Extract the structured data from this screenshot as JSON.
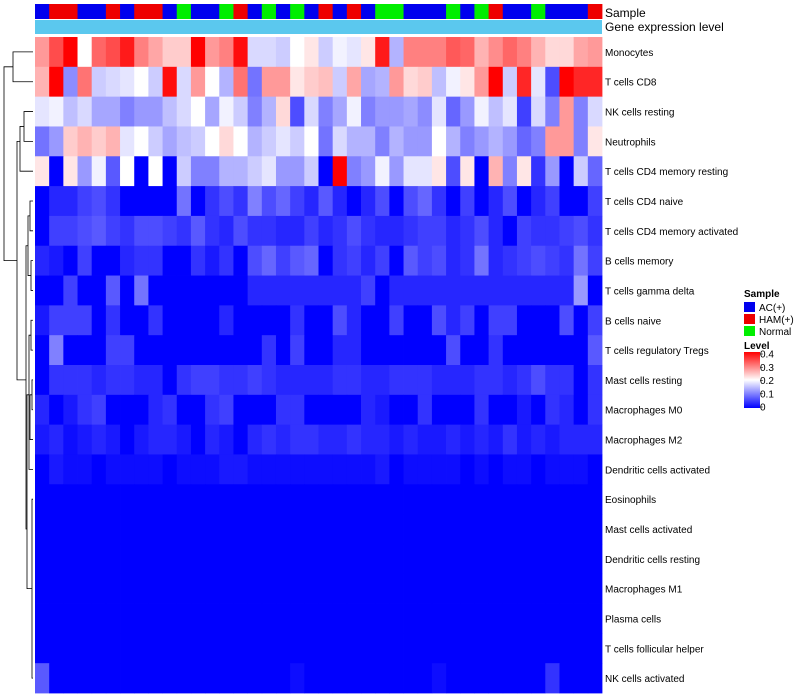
{
  "chart_data": {
    "type": "heatmap",
    "title": "",
    "annotations": {
      "sample_label": "Sample",
      "gene_label": "Gene expression level",
      "sample_colors": [
        "#0000ee",
        "#ee0000",
        "#ee0000",
        "#0000ee",
        "#0000ee",
        "#ee0000",
        "#0000ee",
        "#ee0000",
        "#ee0000",
        "#0000ee",
        "#00ee00",
        "#0000ee",
        "#0000ee",
        "#00ee00",
        "#ee0000",
        "#0000ee",
        "#00ee00",
        "#0000ee",
        "#00ee00",
        "#0000ee",
        "#ee0000",
        "#0000ee",
        "#ee0000",
        "#0000ee",
        "#00ee00",
        "#00ee00",
        "#0000ee",
        "#0000ee",
        "#0000ee",
        "#00ee00",
        "#0000ee",
        "#00ee00",
        "#ee0000",
        "#0000ee",
        "#0000ee",
        "#00ee00",
        "#0000ee",
        "#0000ee",
        "#0000ee",
        "#ee0000"
      ],
      "gene_color": "#5bc8ee"
    },
    "rows": [
      "Monocytes",
      "T cells CD8",
      "NK cells resting",
      "Neutrophils",
      "T cells CD4 memory resting",
      "T cells CD4 naive",
      "T cells CD4 memory activated",
      "B cells memory",
      "T cells gamma delta",
      "B cells naive",
      "T cells regulatory  Tregs",
      "Mast cells resting",
      "Macrophages M0",
      "Macrophages M2",
      "Dendritic cells activated",
      "Eosinophils",
      "Mast cells activated",
      "Dendritic cells resting",
      "Macrophages M1",
      "Plasma cells",
      "T cells follicular helper",
      "NK cells activated"
    ],
    "values": [
      [
        0.28,
        0.34,
        0.4,
        0.2,
        0.32,
        0.34,
        0.38,
        0.3,
        0.27,
        0.24,
        0.24,
        0.4,
        0.28,
        0.3,
        0.39,
        0.17,
        0.17,
        0.16,
        0.2,
        0.22,
        0.16,
        0.19,
        0.18,
        0.22,
        0.38,
        0.14,
        0.3,
        0.3,
        0.3,
        0.33,
        0.32,
        0.26,
        0.29,
        0.32,
        0.3,
        0.26,
        0.23,
        0.23,
        0.27,
        0.28
      ],
      [
        0.26,
        0.4,
        0.11,
        0.31,
        0.16,
        0.17,
        0.18,
        0.2,
        0.16,
        0.39,
        0.17,
        0.28,
        0.2,
        0.14,
        0.31,
        0.09,
        0.28,
        0.28,
        0.22,
        0.24,
        0.25,
        0.16,
        0.27,
        0.13,
        0.14,
        0.28,
        0.23,
        0.24,
        0.15,
        0.19,
        0.22,
        0.28,
        0.4,
        0.16,
        0.37,
        0.18,
        0.06,
        0.4,
        0.37,
        0.37
      ],
      [
        0.18,
        0.19,
        0.15,
        0.17,
        0.13,
        0.13,
        0.1,
        0.12,
        0.12,
        0.15,
        0.17,
        0.2,
        0.13,
        0.19,
        0.16,
        0.1,
        0.14,
        0.23,
        0.06,
        0.17,
        0.1,
        0.13,
        0.19,
        0.1,
        0.12,
        0.12,
        0.13,
        0.11,
        0.18,
        0.08,
        0.12,
        0.19,
        0.15,
        0.18,
        0.05,
        0.17,
        0.1,
        0.28,
        0.1,
        0.17
      ],
      [
        0.09,
        0.12,
        0.24,
        0.26,
        0.24,
        0.26,
        0.18,
        0.2,
        0.16,
        0.13,
        0.15,
        0.16,
        0.2,
        0.23,
        0.2,
        0.14,
        0.16,
        0.18,
        0.16,
        0.2,
        0.09,
        0.17,
        0.14,
        0.14,
        0.1,
        0.14,
        0.12,
        0.12,
        0.2,
        0.14,
        0.1,
        0.12,
        0.14,
        0.12,
        0.08,
        0.1,
        0.28,
        0.28,
        0.1,
        0.22
      ],
      [
        0.22,
        0.0,
        0.22,
        0.12,
        0.19,
        0.07,
        0.2,
        0.0,
        0.2,
        0.0,
        0.16,
        0.1,
        0.1,
        0.14,
        0.14,
        0.16,
        0.18,
        0.12,
        0.12,
        0.16,
        0.0,
        0.4,
        0.1,
        0.12,
        0.19,
        0.12,
        0.18,
        0.18,
        0.22,
        0.06,
        0.22,
        0.0,
        0.26,
        0.1,
        0.22,
        0.04,
        0.12,
        0.0,
        0.16,
        0.08
      ],
      [
        0.0,
        0.03,
        0.03,
        0.05,
        0.06,
        0.04,
        0.0,
        0.0,
        0.0,
        0.0,
        0.09,
        0.0,
        0.04,
        0.06,
        0.04,
        0.1,
        0.06,
        0.08,
        0.05,
        0.03,
        0.07,
        0.03,
        0.0,
        0.03,
        0.06,
        0.0,
        0.06,
        0.08,
        0.04,
        0.0,
        0.05,
        0.0,
        0.03,
        0.06,
        0.0,
        0.03,
        0.05,
        0.0,
        0.0,
        0.05
      ],
      [
        0.0,
        0.05,
        0.05,
        0.06,
        0.07,
        0.05,
        0.04,
        0.06,
        0.06,
        0.05,
        0.04,
        0.07,
        0.04,
        0.03,
        0.06,
        0.04,
        0.04,
        0.03,
        0.03,
        0.05,
        0.03,
        0.04,
        0.06,
        0.04,
        0.03,
        0.03,
        0.04,
        0.05,
        0.05,
        0.03,
        0.04,
        0.06,
        0.03,
        0.0,
        0.05,
        0.04,
        0.04,
        0.05,
        0.06,
        0.04
      ],
      [
        0.03,
        0.02,
        0.0,
        0.05,
        0.0,
        0.0,
        0.03,
        0.04,
        0.04,
        0.0,
        0.0,
        0.04,
        0.02,
        0.04,
        0.0,
        0.06,
        0.08,
        0.05,
        0.07,
        0.08,
        0.0,
        0.04,
        0.05,
        0.03,
        0.05,
        0.0,
        0.07,
        0.05,
        0.06,
        0.03,
        0.04,
        0.09,
        0.03,
        0.04,
        0.05,
        0.06,
        0.05,
        0.04,
        0.09,
        0.05
      ],
      [
        0.0,
        0.0,
        0.05,
        0.0,
        0.0,
        0.07,
        0.0,
        0.09,
        0.0,
        0.0,
        0.0,
        0.0,
        0.0,
        0.0,
        0.0,
        0.03,
        0.03,
        0.03,
        0.03,
        0.03,
        0.03,
        0.03,
        0.03,
        0.05,
        0.0,
        0.03,
        0.03,
        0.03,
        0.03,
        0.03,
        0.03,
        0.03,
        0.03,
        0.03,
        0.03,
        0.03,
        0.03,
        0.03,
        0.12,
        0.0
      ],
      [
        0.02,
        0.05,
        0.05,
        0.05,
        0.0,
        0.04,
        0.0,
        0.0,
        0.04,
        0.0,
        0.0,
        0.0,
        0.0,
        0.03,
        0.0,
        0.0,
        0.0,
        0.0,
        0.04,
        0.0,
        0.0,
        0.06,
        0.03,
        0.0,
        0.0,
        0.05,
        0.0,
        0.0,
        0.06,
        0.03,
        0.05,
        0.0,
        0.05,
        0.05,
        0.0,
        0.0,
        0.0,
        0.06,
        0.0,
        0.05
      ],
      [
        0.0,
        0.1,
        0.0,
        0.0,
        0.0,
        0.05,
        0.05,
        0.0,
        0.0,
        0.0,
        0.0,
        0.0,
        0.0,
        0.0,
        0.0,
        0.0,
        0.04,
        0.0,
        0.05,
        0.0,
        0.0,
        0.03,
        0.03,
        0.0,
        0.0,
        0.0,
        0.0,
        0.0,
        0.0,
        0.06,
        0.0,
        0.0,
        0.04,
        0.0,
        0.0,
        0.0,
        0.0,
        0.0,
        0.0,
        0.07
      ],
      [
        0.0,
        0.04,
        0.04,
        0.04,
        0.03,
        0.04,
        0.04,
        0.03,
        0.03,
        0.0,
        0.04,
        0.05,
        0.05,
        0.04,
        0.04,
        0.05,
        0.04,
        0.03,
        0.03,
        0.03,
        0.03,
        0.04,
        0.04,
        0.03,
        0.03,
        0.04,
        0.04,
        0.04,
        0.03,
        0.03,
        0.03,
        0.04,
        0.04,
        0.03,
        0.04,
        0.06,
        0.04,
        0.04,
        0.0,
        0.04
      ],
      [
        0.03,
        0.0,
        0.02,
        0.04,
        0.05,
        0.0,
        0.0,
        0.0,
        0.03,
        0.04,
        0.0,
        0.0,
        0.04,
        0.05,
        0.0,
        0.0,
        0.0,
        0.04,
        0.04,
        0.0,
        0.0,
        0.0,
        0.0,
        0.03,
        0.02,
        0.0,
        0.0,
        0.04,
        0.0,
        0.0,
        0.0,
        0.04,
        0.0,
        0.0,
        0.02,
        0.0,
        0.04,
        0.03,
        0.0,
        0.04
      ],
      [
        0.02,
        0.03,
        0.01,
        0.02,
        0.03,
        0.02,
        0.0,
        0.02,
        0.03,
        0.03,
        0.02,
        0.0,
        0.03,
        0.02,
        0.0,
        0.03,
        0.04,
        0.03,
        0.04,
        0.04,
        0.03,
        0.03,
        0.04,
        0.03,
        0.03,
        0.02,
        0.03,
        0.02,
        0.02,
        0.03,
        0.02,
        0.03,
        0.02,
        0.04,
        0.02,
        0.03,
        0.02,
        0.03,
        0.03,
        0.03
      ],
      [
        0.0,
        0.02,
        0.01,
        0.01,
        0.0,
        0.01,
        0.01,
        0.01,
        0.01,
        0.0,
        0.01,
        0.01,
        0.01,
        0.02,
        0.02,
        0.01,
        0.01,
        0.01,
        0.01,
        0.01,
        0.01,
        0.01,
        0.01,
        0.01,
        0.02,
        0.0,
        0.01,
        0.01,
        0.01,
        0.01,
        0.0,
        0.01,
        0.0,
        0.01,
        0.01,
        0.0,
        0.01,
        0.01,
        0.01,
        0.0
      ],
      [
        0.0,
        0.0,
        0.0,
        0.0,
        0.0,
        0.0,
        0.0,
        0.0,
        0.0,
        0.0,
        0.0,
        0.0,
        0.0,
        0.0,
        0.0,
        0.0,
        0.0,
        0.0,
        0.0,
        0.0,
        0.0,
        0.0,
        0.0,
        0.0,
        0.0,
        0.0,
        0.0,
        0.0,
        0.0,
        0.0,
        0.0,
        0.0,
        0.0,
        0.0,
        0.0,
        0.0,
        0.0,
        0.0,
        0.0,
        0.0
      ],
      [
        0.0,
        0.0,
        0.0,
        0.0,
        0.0,
        0.0,
        0.0,
        0.0,
        0.0,
        0.0,
        0.0,
        0.0,
        0.0,
        0.0,
        0.0,
        0.0,
        0.0,
        0.0,
        0.0,
        0.0,
        0.0,
        0.0,
        0.0,
        0.0,
        0.0,
        0.0,
        0.0,
        0.0,
        0.0,
        0.0,
        0.0,
        0.0,
        0.0,
        0.0,
        0.0,
        0.0,
        0.0,
        0.0,
        0.0,
        0.0
      ],
      [
        0.0,
        0.0,
        0.0,
        0.0,
        0.0,
        0.0,
        0.0,
        0.0,
        0.0,
        0.0,
        0.0,
        0.0,
        0.0,
        0.0,
        0.0,
        0.0,
        0.0,
        0.0,
        0.0,
        0.0,
        0.0,
        0.0,
        0.0,
        0.0,
        0.0,
        0.0,
        0.0,
        0.0,
        0.0,
        0.0,
        0.0,
        0.0,
        0.0,
        0.0,
        0.0,
        0.0,
        0.0,
        0.0,
        0.0,
        0.0
      ],
      [
        0.0,
        0.0,
        0.0,
        0.0,
        0.0,
        0.0,
        0.0,
        0.0,
        0.0,
        0.0,
        0.0,
        0.0,
        0.0,
        0.0,
        0.0,
        0.0,
        0.0,
        0.0,
        0.0,
        0.0,
        0.0,
        0.0,
        0.0,
        0.0,
        0.0,
        0.0,
        0.0,
        0.0,
        0.0,
        0.0,
        0.0,
        0.0,
        0.0,
        0.0,
        0.0,
        0.0,
        0.0,
        0.0,
        0.0,
        0.0
      ],
      [
        0.0,
        0.0,
        0.0,
        0.0,
        0.0,
        0.0,
        0.0,
        0.0,
        0.0,
        0.0,
        0.0,
        0.0,
        0.0,
        0.0,
        0.0,
        0.0,
        0.0,
        0.0,
        0.0,
        0.0,
        0.0,
        0.0,
        0.0,
        0.0,
        0.0,
        0.0,
        0.0,
        0.0,
        0.0,
        0.0,
        0.0,
        0.0,
        0.0,
        0.0,
        0.0,
        0.0,
        0.0,
        0.0,
        0.0,
        0.0
      ],
      [
        0.0,
        0.0,
        0.0,
        0.0,
        0.0,
        0.0,
        0.0,
        0.0,
        0.0,
        0.0,
        0.0,
        0.0,
        0.0,
        0.0,
        0.0,
        0.0,
        0.0,
        0.0,
        0.0,
        0.0,
        0.0,
        0.0,
        0.0,
        0.0,
        0.0,
        0.0,
        0.0,
        0.0,
        0.0,
        0.0,
        0.0,
        0.0,
        0.0,
        0.0,
        0.0,
        0.0,
        0.0,
        0.0,
        0.0,
        0.0
      ],
      [
        0.07,
        0.0,
        0.0,
        0.0,
        0.0,
        0.0,
        0.0,
        0.0,
        0.0,
        0.0,
        0.0,
        0.0,
        0.0,
        0.0,
        0.0,
        0.0,
        0.0,
        0.0,
        0.01,
        0.0,
        0.0,
        0.0,
        0.0,
        0.0,
        0.0,
        0.0,
        0.0,
        0.0,
        0.01,
        0.0,
        0.0,
        0.0,
        0.0,
        0.0,
        0.0,
        0.0,
        0.04,
        0.0,
        0.0,
        0.0
      ]
    ],
    "color_scale": {
      "min": 0,
      "mid": 0.2,
      "max": 0.4,
      "low_color": "#0000ff",
      "mid_color": "#ffffff",
      "high_color": "#ff0000"
    },
    "legend": {
      "sample_title": "Sample",
      "sample_items": [
        {
          "label": "AC(+)",
          "color": "#0000ee"
        },
        {
          "label": "HAM(+)",
          "color": "#ee0000"
        },
        {
          "label": "Normal",
          "color": "#00ee00"
        }
      ],
      "level_title": "Level",
      "level_ticks": [
        "0.4",
        "0.3",
        "0.2",
        "0.1",
        "0"
      ],
      "position": "right"
    }
  }
}
